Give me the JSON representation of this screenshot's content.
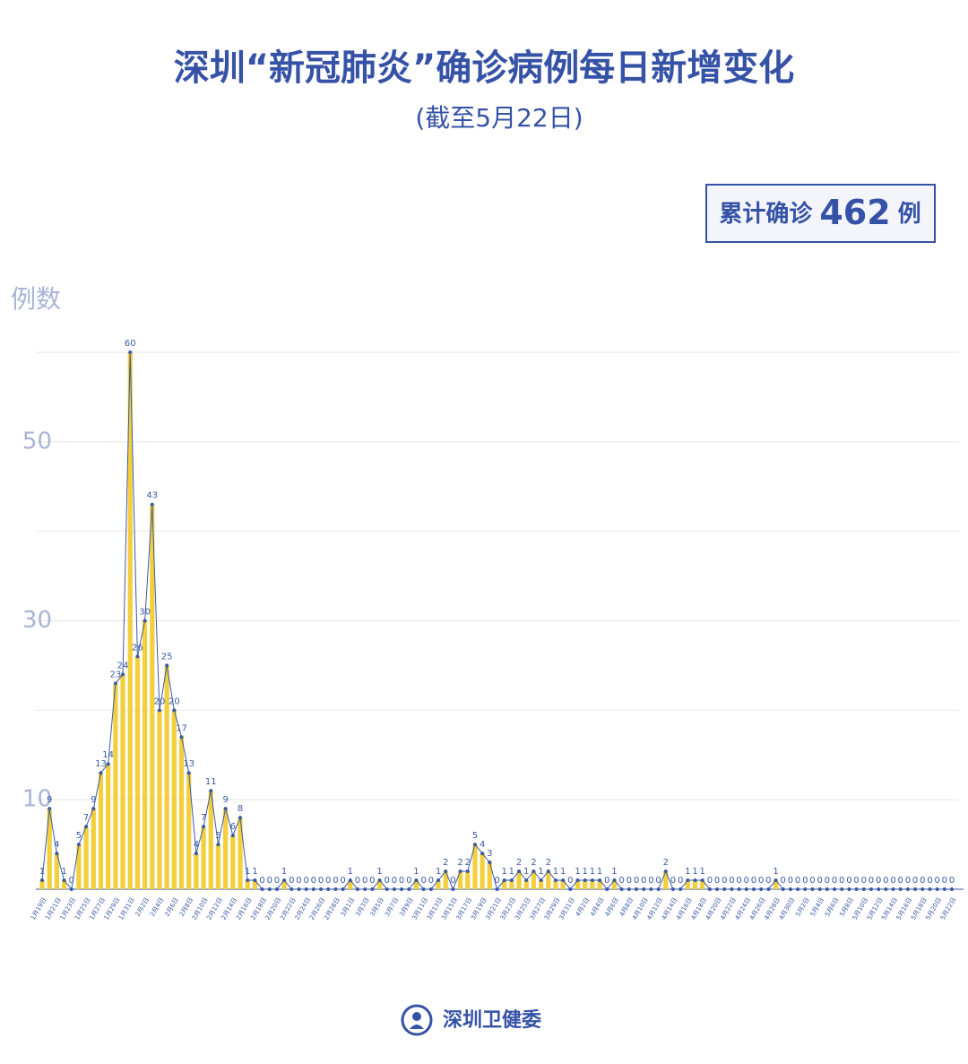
{
  "chart_data": {
    "type": "bar",
    "title": "深圳“新冠肺炎”确诊病例每日新增变化",
    "subtitle": "(截至5月22日)",
    "total": {
      "label": "累计确诊",
      "value": 462,
      "unit": "例"
    },
    "y_label": "例数",
    "footer": "深圳卫健委",
    "color": "#f2cf3b",
    "line_color": "#3b5aa6",
    "grid": true,
    "ylim": [
      0,
      60
    ],
    "yticks": [
      10,
      30,
      50
    ],
    "minor_yticks": [
      20,
      40,
      60
    ],
    "categories": [
      "1月19日",
      null,
      "1月21日",
      null,
      "1月23日",
      null,
      "1月25日",
      null,
      "1月27日",
      null,
      "1月29日",
      null,
      "1月31日",
      null,
      "2月2日",
      null,
      "2月4日",
      null,
      "2月6日",
      null,
      "2月8日",
      null,
      "2月10日",
      null,
      "2月12日",
      null,
      "2月14日",
      null,
      "2月16日",
      null,
      "2月18日",
      null,
      "2月20日",
      null,
      "2月22日",
      null,
      "2月24日",
      null,
      "2月26日",
      null,
      "2月28日",
      null,
      "3月1日",
      null,
      "3月3日",
      null,
      "3月5日",
      null,
      "3月7日",
      null,
      "3月9日",
      null,
      "3月11日",
      null,
      "3月13日",
      null,
      "3月15日",
      null,
      "3月17日",
      null,
      "3月19日",
      null,
      "3月21日",
      null,
      "3月23日",
      null,
      "3月25日",
      null,
      "3月27日",
      null,
      "3月29日",
      null,
      "3月31日",
      null,
      "4月2日",
      null,
      "4月4日",
      null,
      "4月6日",
      null,
      "4月8日",
      null,
      "4月10日",
      null,
      "4月12日",
      null,
      "4月14日",
      null,
      "4月16日",
      null,
      "4月18日",
      null,
      "4月20日",
      null,
      "4月22日",
      null,
      "4月24日",
      null,
      "4月26日",
      null,
      "4月28日",
      null,
      "4月30日",
      null,
      "5月2日",
      null,
      "5月4日",
      null,
      "5月6日",
      null,
      "5月8日",
      null,
      "5月10日",
      null,
      "5月12日",
      null,
      "5月14日",
      null,
      "5月16日",
      null,
      "5月18日",
      null,
      "5月20日",
      null,
      "5月22日"
    ],
    "values": [
      1,
      9,
      4,
      1,
      0,
      5,
      7,
      9,
      13,
      14,
      23,
      24,
      60,
      26,
      30,
      43,
      20,
      25,
      20,
      17,
      13,
      4,
      7,
      11,
      5,
      9,
      6,
      8,
      1,
      1,
      0,
      0,
      0,
      1,
      0,
      0,
      0,
      0,
      0,
      0,
      0,
      0,
      1,
      0,
      0,
      0,
      1,
      0,
      0,
      0,
      0,
      1,
      0,
      0,
      1,
      2,
      0,
      2,
      2,
      5,
      4,
      3,
      0,
      1,
      1,
      2,
      1,
      2,
      1,
      2,
      1,
      1,
      0,
      1,
      1,
      1,
      1,
      0,
      1,
      0,
      0,
      0,
      0,
      0,
      0,
      2,
      0,
      0,
      1,
      1,
      1,
      0,
      0,
      0,
      0,
      0,
      0,
      0,
      0,
      0,
      1,
      0,
      0,
      0,
      0,
      0,
      0,
      0,
      0,
      0,
      0,
      0,
      0,
      0,
      0,
      0,
      0,
      0,
      0,
      0,
      0,
      0,
      0,
      0,
      0
    ]
  }
}
